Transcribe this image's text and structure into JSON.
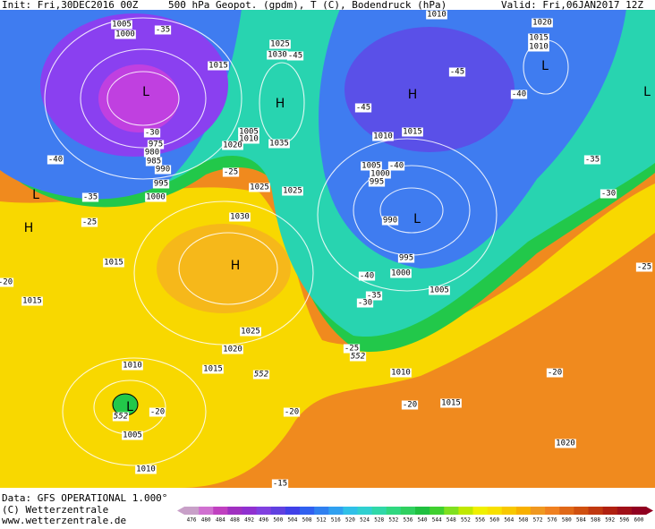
{
  "header": {
    "init": "Init: Fri,30DEC2016 00Z",
    "title": "500 hPa Geopot. (gpdm), T (C), Bodendruck (hPa)",
    "valid": "Valid: Fri,06JAN2017 12Z"
  },
  "map": {
    "pressure_labels": [
      "1005",
      "1000",
      "1025",
      "1030",
      "1015",
      "1005",
      "1010",
      "1020",
      "1035",
      "975",
      "980",
      "985",
      "990",
      "995",
      "1000",
      "1025",
      "1025",
      "1030",
      "1015",
      "1015",
      "1025",
      "1020",
      "1010",
      "1015",
      "1005",
      "1010",
      "1010",
      "1020",
      "1015",
      "1010",
      "1010",
      "1015",
      "1005",
      "1000",
      "995",
      "990",
      "995",
      "1000",
      "1005",
      "1010",
      "1015",
      "1020"
    ],
    "temperature_labels": [
      "-35",
      "-45",
      "-30",
      "-25",
      "-40",
      "-35",
      "-25",
      "-20",
      "-45",
      "-40",
      "-45",
      "-40",
      "-35",
      "-30",
      "-25",
      "-40",
      "-35",
      "-30",
      "-25",
      "-20",
      "-20",
      "-20",
      "-20",
      "-15"
    ],
    "thickness_labels": [
      "552",
      "552",
      "552"
    ],
    "centers": [
      "L",
      "H",
      "L",
      "H",
      "H",
      "L",
      "H",
      "L",
      "L",
      "L"
    ]
  },
  "colorbar": {
    "labels": [
      476,
      480,
      484,
      488,
      492,
      496,
      500,
      504,
      508,
      512,
      516,
      520,
      524,
      528,
      532,
      536,
      540,
      544,
      548,
      552,
      556,
      560,
      564,
      568,
      572,
      576,
      580,
      584,
      588,
      592,
      596,
      600
    ],
    "colors": [
      "#c8a0c8",
      "#d070d0",
      "#c040c0",
      "#a030c0",
      "#9030d0",
      "#8040e0",
      "#6040e0",
      "#4040e8",
      "#3060f0",
      "#3080f0",
      "#30a0f0",
      "#30c0e8",
      "#30d0d0",
      "#30d8a8",
      "#30d880",
      "#30d060",
      "#20c040",
      "#40d030",
      "#80e020",
      "#c0e800",
      "#f0f000",
      "#f8e000",
      "#f8c800",
      "#f8b000",
      "#f09820",
      "#f08020",
      "#e06818",
      "#d05010",
      "#c03810",
      "#b02010",
      "#a01018",
      "#900020"
    ]
  },
  "footer": {
    "data": "Data: GFS OPERATIONAL 1.000°",
    "copyright": "(C) Wetterzentrale",
    "url": "www.wetterzentrale.de"
  }
}
